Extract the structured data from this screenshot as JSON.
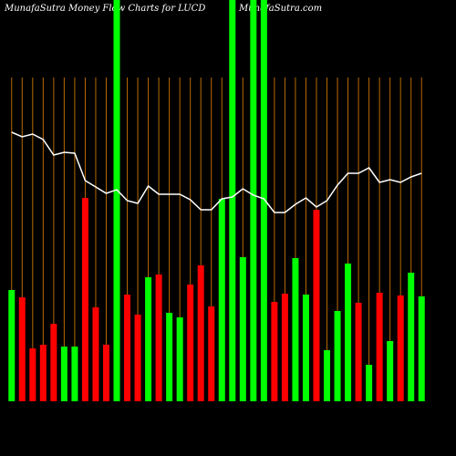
{
  "chart_data": {
    "type": "bar",
    "title": "MunafaSutra  Money Flow  Charts for LUCD",
    "subtitle": "MunafaSutra.com",
    "ylim": [
      0,
      440
    ],
    "series": [
      {
        "type": "bar",
        "values": [
          122,
          114,
          58,
          62,
          85,
          60,
          60,
          223,
          103,
          62,
          440,
          117,
          95,
          136,
          139,
          97,
          92,
          128,
          149,
          104,
          222,
          440,
          158,
          440,
          440,
          109,
          118,
          157,
          117,
          210,
          56,
          99,
          151,
          108,
          40,
          119,
          66,
          116,
          141,
          115
        ],
        "colors": [
          "#00ff00",
          "#ff0000",
          "#ff0000",
          "#ff0000",
          "#ff0000",
          "#00ff00",
          "#00ff00",
          "#ff0000",
          "#ff0000",
          "#ff0000",
          "#00ff00",
          "#ff0000",
          "#ff0000",
          "#00ff00",
          "#ff0000",
          "#00ff00",
          "#00ff00",
          "#ff0000",
          "#ff0000",
          "#ff0000",
          "#00ff00",
          "#00ff00",
          "#00ff00",
          "#00ff00",
          "#00ff00",
          "#ff0000",
          "#ff0000",
          "#00ff00",
          "#00ff00",
          "#ff0000",
          "#00ff00",
          "#00ff00",
          "#00ff00",
          "#ff0000",
          "#00ff00",
          "#ff0000",
          "#00ff00",
          "#ff0000",
          "#00ff00",
          "#00ff00"
        ]
      },
      {
        "type": "line",
        "color": "#ffffff",
        "values": [
          295,
          290,
          293,
          287,
          270,
          273,
          272,
          242,
          235,
          228,
          232,
          220,
          217,
          236,
          227,
          227,
          227,
          221,
          210,
          210,
          222,
          224,
          233,
          226,
          222,
          207,
          207,
          216,
          223,
          213,
          220,
          237,
          250,
          250,
          256,
          240,
          243,
          240,
          246,
          250
        ]
      }
    ]
  }
}
